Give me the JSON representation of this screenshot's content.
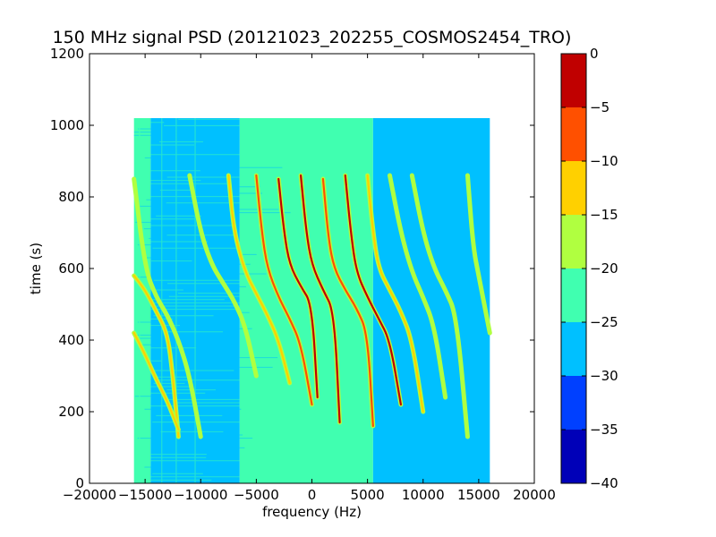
{
  "chart_data": {
    "type": "heatmap",
    "title": "150 MHz signal PSD (20121023_202255_COSMOS2454_TRO)",
    "xlabel": "frequency (Hz)",
    "ylabel": "time (s)",
    "xlim": [
      -20000,
      20000
    ],
    "ylim": [
      0,
      1200
    ],
    "x_ticks": [
      -20000,
      -15000,
      -10000,
      -5000,
      0,
      5000,
      10000,
      15000,
      20000
    ],
    "x_tick_labels": [
      "−20000",
      "−15000",
      "−10000",
      "−5000",
      "0",
      "5000",
      "10000",
      "15000",
      "20000"
    ],
    "y_ticks": [
      0,
      200,
      400,
      600,
      800,
      1000,
      1200
    ],
    "y_tick_labels": [
      "0",
      "200",
      "400",
      "600",
      "800",
      "1000",
      "1200"
    ],
    "data_extent": {
      "x": [
        -16000,
        16000
      ],
      "y": [
        0,
        1020
      ]
    },
    "grid": false,
    "colorbar": {
      "range": [
        -40,
        0
      ],
      "levels": [
        -40,
        -35,
        -30,
        -25,
        -20,
        -15,
        -10,
        -5,
        0
      ],
      "tick_labels": [
        "−40",
        "−35",
        "−30",
        "−25",
        "−20",
        "−15",
        "−10",
        "−5",
        "0"
      ],
      "colors": [
        "#0000b8",
        "#0040ff",
        "#00c0ff",
        "#40ffb0",
        "#b0ff40",
        "#ffd000",
        "#ff5000",
        "#c00000"
      ]
    },
    "regions": [
      {
        "band": [
          -25,
          -20
        ],
        "x": [
          -6500,
          5500
        ],
        "y": [
          0,
          1020
        ]
      },
      {
        "band": [
          -25,
          -20
        ],
        "x": [
          -16000,
          -14500
        ],
        "y": [
          0,
          1020
        ]
      },
      {
        "band": [
          -30,
          -25
        ],
        "x": [
          -14500,
          -6500
        ],
        "y": [
          0,
          1020
        ]
      },
      {
        "band": [
          -30,
          -25
        ],
        "x": [
          5500,
          16000
        ],
        "y": [
          0,
          1020
        ]
      }
    ],
    "traces": [
      {
        "x": [
          -16000,
          -15000,
          -14000,
          -13000,
          -12000,
          -11000,
          -10000
        ],
        "y": [
          850,
          600,
          520,
          470,
          400,
          300,
          130
        ],
        "peak": "green"
      },
      {
        "x": [
          -16000,
          -15000,
          -14000,
          -13000,
          -12500,
          -12000
        ],
        "y": [
          580,
          540,
          480,
          420,
          300,
          130
        ],
        "peak": "yellow"
      },
      {
        "x": [
          -16000,
          -15000,
          -14000,
          -13000,
          -12000
        ],
        "y": [
          420,
          360,
          290,
          230,
          150
        ],
        "peak": "yellow"
      },
      {
        "x": [
          -11000,
          -10000,
          -9000,
          -8000,
          -7000,
          -6000,
          -5000
        ],
        "y": [
          860,
          700,
          610,
          560,
          510,
          440,
          300
        ],
        "peak": "green"
      },
      {
        "x": [
          -7500,
          -7000,
          -6000,
          -5000,
          -4000,
          -3000,
          -2000
        ],
        "y": [
          860,
          700,
          590,
          530,
          470,
          400,
          280
        ],
        "peak": "yellow"
      },
      {
        "x": [
          -5000,
          -4500,
          -4000,
          -3000,
          -2000,
          -1000,
          0
        ],
        "y": [
          860,
          700,
          600,
          520,
          460,
          390,
          220
        ],
        "peak": "orange"
      },
      {
        "x": [
          -3000,
          -2500,
          -2000,
          -1000,
          0,
          500
        ],
        "y": [
          850,
          700,
          610,
          550,
          500,
          240
        ],
        "peak": "red"
      },
      {
        "x": [
          -1000,
          -500,
          0,
          1000,
          2000,
          2500
        ],
        "y": [
          860,
          700,
          610,
          540,
          480,
          170
        ],
        "peak": "red"
      },
      {
        "x": [
          1000,
          1500,
          2000,
          3000,
          4000,
          5000,
          5500
        ],
        "y": [
          850,
          680,
          600,
          540,
          490,
          420,
          160
        ],
        "peak": "orange"
      },
      {
        "x": [
          3000,
          3500,
          4000,
          5000,
          6000,
          7000,
          8000
        ],
        "y": [
          860,
          700,
          590,
          520,
          460,
          400,
          220
        ],
        "peak": "red"
      },
      {
        "x": [
          5000,
          5500,
          6000,
          7000,
          8000,
          9000,
          10000
        ],
        "y": [
          860,
          700,
          600,
          540,
          480,
          400,
          200
        ],
        "peak": "yellow"
      },
      {
        "x": [
          7000,
          8000,
          9000,
          10000,
          11000,
          12000
        ],
        "y": [
          860,
          700,
          590,
          520,
          440,
          240
        ],
        "peak": "green"
      },
      {
        "x": [
          9000,
          10000,
          11000,
          12000,
          13000,
          14000
        ],
        "y": [
          860,
          700,
          600,
          540,
          470,
          130
        ],
        "peak": "green"
      },
      {
        "x": [
          14000,
          14500,
          15000,
          15500,
          16000
        ],
        "y": [
          860,
          660,
          580,
          500,
          420
        ],
        "peak": "green"
      }
    ]
  }
}
